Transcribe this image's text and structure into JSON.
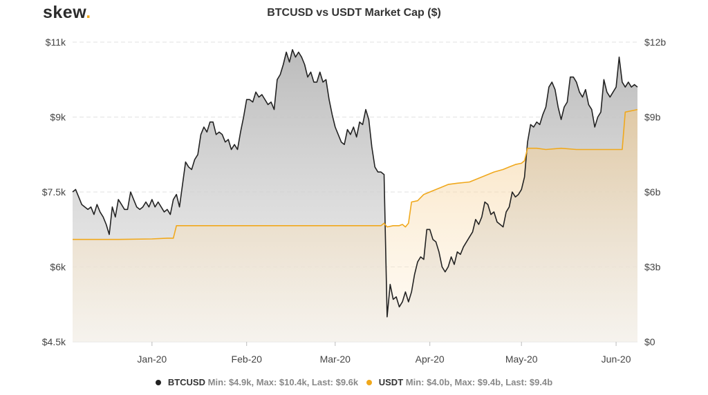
{
  "brand": {
    "name": "skew",
    "dot": "."
  },
  "chart_data": {
    "type": "line",
    "title": "BTCUSD vs USDT Market Cap ($)",
    "left_axis": {
      "ticks": [
        "$11k",
        "$9k",
        "$7.5k",
        "$6k",
        "$4.5k"
      ],
      "values": [
        10500,
        9000,
        7500,
        6000,
        4500
      ],
      "range": [
        4500,
        10500
      ]
    },
    "right_axis": {
      "ticks": [
        "$12b",
        "$9b",
        "$6b",
        "$3b",
        "$0"
      ],
      "values": [
        12,
        9,
        6,
        3,
        0
      ],
      "range": [
        0,
        12
      ]
    },
    "x_ticks": [
      {
        "label": "Jan-20",
        "day": 31
      },
      {
        "label": "Feb-20",
        "day": 62
      },
      {
        "label": "Mar-20",
        "day": 91
      },
      {
        "label": "Apr-20",
        "day": 122
      },
      {
        "label": "May-20",
        "day": 152
      },
      {
        "label": "Jun-20",
        "day": 183
      }
    ],
    "x_range_days": [
      5,
      190
    ],
    "series": [
      {
        "name": "BTCUSD",
        "color": "#222222",
        "axis": "left",
        "values": [
          [
            5,
            7500
          ],
          [
            6,
            7550
          ],
          [
            7,
            7400
          ],
          [
            8,
            7250
          ],
          [
            9,
            7200
          ],
          [
            10,
            7150
          ],
          [
            11,
            7200
          ],
          [
            12,
            7050
          ],
          [
            13,
            7250
          ],
          [
            14,
            7100
          ],
          [
            15,
            7000
          ],
          [
            16,
            6850
          ],
          [
            17,
            6650
          ],
          [
            18,
            7200
          ],
          [
            19,
            7000
          ],
          [
            20,
            7350
          ],
          [
            21,
            7250
          ],
          [
            22,
            7150
          ],
          [
            23,
            7150
          ],
          [
            24,
            7500
          ],
          [
            25,
            7350
          ],
          [
            26,
            7200
          ],
          [
            27,
            7150
          ],
          [
            28,
            7200
          ],
          [
            29,
            7300
          ],
          [
            30,
            7200
          ],
          [
            31,
            7350
          ],
          [
            32,
            7200
          ],
          [
            33,
            7300
          ],
          [
            34,
            7200
          ],
          [
            35,
            7100
          ],
          [
            36,
            7150
          ],
          [
            37,
            7050
          ],
          [
            38,
            7350
          ],
          [
            39,
            7450
          ],
          [
            40,
            7200
          ],
          [
            41,
            7650
          ],
          [
            42,
            8100
          ],
          [
            43,
            8000
          ],
          [
            44,
            7950
          ],
          [
            45,
            8150
          ],
          [
            46,
            8250
          ],
          [
            47,
            8650
          ],
          [
            48,
            8800
          ],
          [
            49,
            8700
          ],
          [
            50,
            8900
          ],
          [
            51,
            8900
          ],
          [
            52,
            8650
          ],
          [
            53,
            8700
          ],
          [
            54,
            8650
          ],
          [
            55,
            8500
          ],
          [
            56,
            8550
          ],
          [
            57,
            8350
          ],
          [
            58,
            8450
          ],
          [
            59,
            8350
          ],
          [
            60,
            8700
          ],
          [
            61,
            9000
          ],
          [
            62,
            9350
          ],
          [
            63,
            9350
          ],
          [
            64,
            9300
          ],
          [
            65,
            9500
          ],
          [
            66,
            9400
          ],
          [
            67,
            9450
          ],
          [
            68,
            9350
          ],
          [
            69,
            9250
          ],
          [
            70,
            9300
          ],
          [
            71,
            9150
          ],
          [
            72,
            9750
          ],
          [
            73,
            9850
          ],
          [
            74,
            10050
          ],
          [
            75,
            10300
          ],
          [
            76,
            10100
          ],
          [
            77,
            10350
          ],
          [
            78,
            10200
          ],
          [
            79,
            10300
          ],
          [
            80,
            10200
          ],
          [
            81,
            10050
          ],
          [
            82,
            9800
          ],
          [
            83,
            9900
          ],
          [
            84,
            9700
          ],
          [
            85,
            9700
          ],
          [
            86,
            9900
          ],
          [
            87,
            9700
          ],
          [
            88,
            9750
          ],
          [
            89,
            9350
          ],
          [
            90,
            9050
          ],
          [
            91,
            8800
          ],
          [
            92,
            8650
          ],
          [
            93,
            8500
          ],
          [
            94,
            8450
          ],
          [
            95,
            8750
          ],
          [
            96,
            8650
          ],
          [
            97,
            8800
          ],
          [
            98,
            8600
          ],
          [
            99,
            8900
          ],
          [
            100,
            8850
          ],
          [
            101,
            9150
          ],
          [
            102,
            8950
          ],
          [
            103,
            8400
          ],
          [
            104,
            8000
          ],
          [
            105,
            7900
          ],
          [
            106,
            7900
          ],
          [
            107,
            7850
          ],
          [
            108,
            5000
          ],
          [
            109,
            5650
          ],
          [
            110,
            5350
          ],
          [
            111,
            5400
          ],
          [
            112,
            5200
          ],
          [
            113,
            5300
          ],
          [
            114,
            5500
          ],
          [
            115,
            5300
          ],
          [
            116,
            5500
          ],
          [
            117,
            5850
          ],
          [
            118,
            6100
          ],
          [
            119,
            6200
          ],
          [
            120,
            6150
          ],
          [
            121,
            6750
          ],
          [
            122,
            6750
          ],
          [
            123,
            6550
          ],
          [
            124,
            6500
          ],
          [
            125,
            6300
          ],
          [
            126,
            6000
          ],
          [
            127,
            5900
          ],
          [
            128,
            6000
          ],
          [
            129,
            6200
          ],
          [
            130,
            6050
          ],
          [
            131,
            6300
          ],
          [
            132,
            6250
          ],
          [
            133,
            6400
          ],
          [
            134,
            6500
          ],
          [
            135,
            6600
          ],
          [
            136,
            6700
          ],
          [
            137,
            6950
          ],
          [
            138,
            6850
          ],
          [
            139,
            7000
          ],
          [
            140,
            7300
          ],
          [
            141,
            7250
          ],
          [
            142,
            7050
          ],
          [
            143,
            7100
          ],
          [
            144,
            6900
          ],
          [
            145,
            6850
          ],
          [
            146,
            6800
          ],
          [
            147,
            7100
          ],
          [
            148,
            7200
          ],
          [
            149,
            7500
          ],
          [
            150,
            7400
          ],
          [
            151,
            7450
          ],
          [
            152,
            7550
          ],
          [
            153,
            7800
          ],
          [
            154,
            8500
          ],
          [
            155,
            8850
          ],
          [
            156,
            8800
          ],
          [
            157,
            8900
          ],
          [
            158,
            8850
          ],
          [
            159,
            9050
          ],
          [
            160,
            9200
          ],
          [
            161,
            9600
          ],
          [
            162,
            9700
          ],
          [
            163,
            9550
          ],
          [
            164,
            9200
          ],
          [
            165,
            8950
          ],
          [
            166,
            9200
          ],
          [
            167,
            9300
          ],
          [
            168,
            9800
          ],
          [
            169,
            9800
          ],
          [
            170,
            9700
          ],
          [
            171,
            9500
          ],
          [
            172,
            9400
          ],
          [
            173,
            9550
          ],
          [
            174,
            9250
          ],
          [
            175,
            9150
          ],
          [
            176,
            8800
          ],
          [
            177,
            9000
          ],
          [
            178,
            9100
          ],
          [
            179,
            9750
          ],
          [
            180,
            9500
          ],
          [
            181,
            9400
          ],
          [
            182,
            9500
          ],
          [
            183,
            9600
          ],
          [
            184,
            10200
          ],
          [
            185,
            9700
          ],
          [
            186,
            9600
          ],
          [
            187,
            9700
          ],
          [
            188,
            9600
          ],
          [
            189,
            9650
          ],
          [
            190,
            9600
          ]
        ]
      },
      {
        "name": "USDT",
        "color": "#f0a81c",
        "axis": "right",
        "values": [
          [
            5,
            4.1
          ],
          [
            20,
            4.1
          ],
          [
            31,
            4.12
          ],
          [
            36,
            4.15
          ],
          [
            38,
            4.15
          ],
          [
            39,
            4.65
          ],
          [
            50,
            4.65
          ],
          [
            62,
            4.65
          ],
          [
            80,
            4.65
          ],
          [
            100,
            4.65
          ],
          [
            106,
            4.65
          ],
          [
            107,
            4.75
          ],
          [
            108,
            4.6
          ],
          [
            110,
            4.65
          ],
          [
            112,
            4.65
          ],
          [
            113,
            4.7
          ],
          [
            114,
            4.6
          ],
          [
            115,
            4.75
          ],
          [
            116,
            5.6
          ],
          [
            118,
            5.65
          ],
          [
            120,
            5.9
          ],
          [
            122,
            6.0
          ],
          [
            124,
            6.1
          ],
          [
            126,
            6.2
          ],
          [
            128,
            6.3
          ],
          [
            131,
            6.35
          ],
          [
            135,
            6.4
          ],
          [
            140,
            6.65
          ],
          [
            143,
            6.8
          ],
          [
            146,
            6.9
          ],
          [
            148,
            7.0
          ],
          [
            150,
            7.1
          ],
          [
            152,
            7.15
          ],
          [
            153,
            7.25
          ],
          [
            154,
            7.75
          ],
          [
            157,
            7.75
          ],
          [
            160,
            7.7
          ],
          [
            165,
            7.75
          ],
          [
            170,
            7.7
          ],
          [
            180,
            7.7
          ],
          [
            185,
            7.7
          ],
          [
            186,
            9.2
          ],
          [
            190,
            9.3
          ]
        ]
      }
    ],
    "legend": [
      {
        "name": "BTCUSD",
        "stats": "Min: $4.9k, Max: $10.4k, Last: $9.6k",
        "color": "#222222"
      },
      {
        "name": "USDT",
        "stats": "Min: $4.0b, Max: $9.4b, Last: $9.4b",
        "color": "#f0a81c"
      }
    ]
  }
}
